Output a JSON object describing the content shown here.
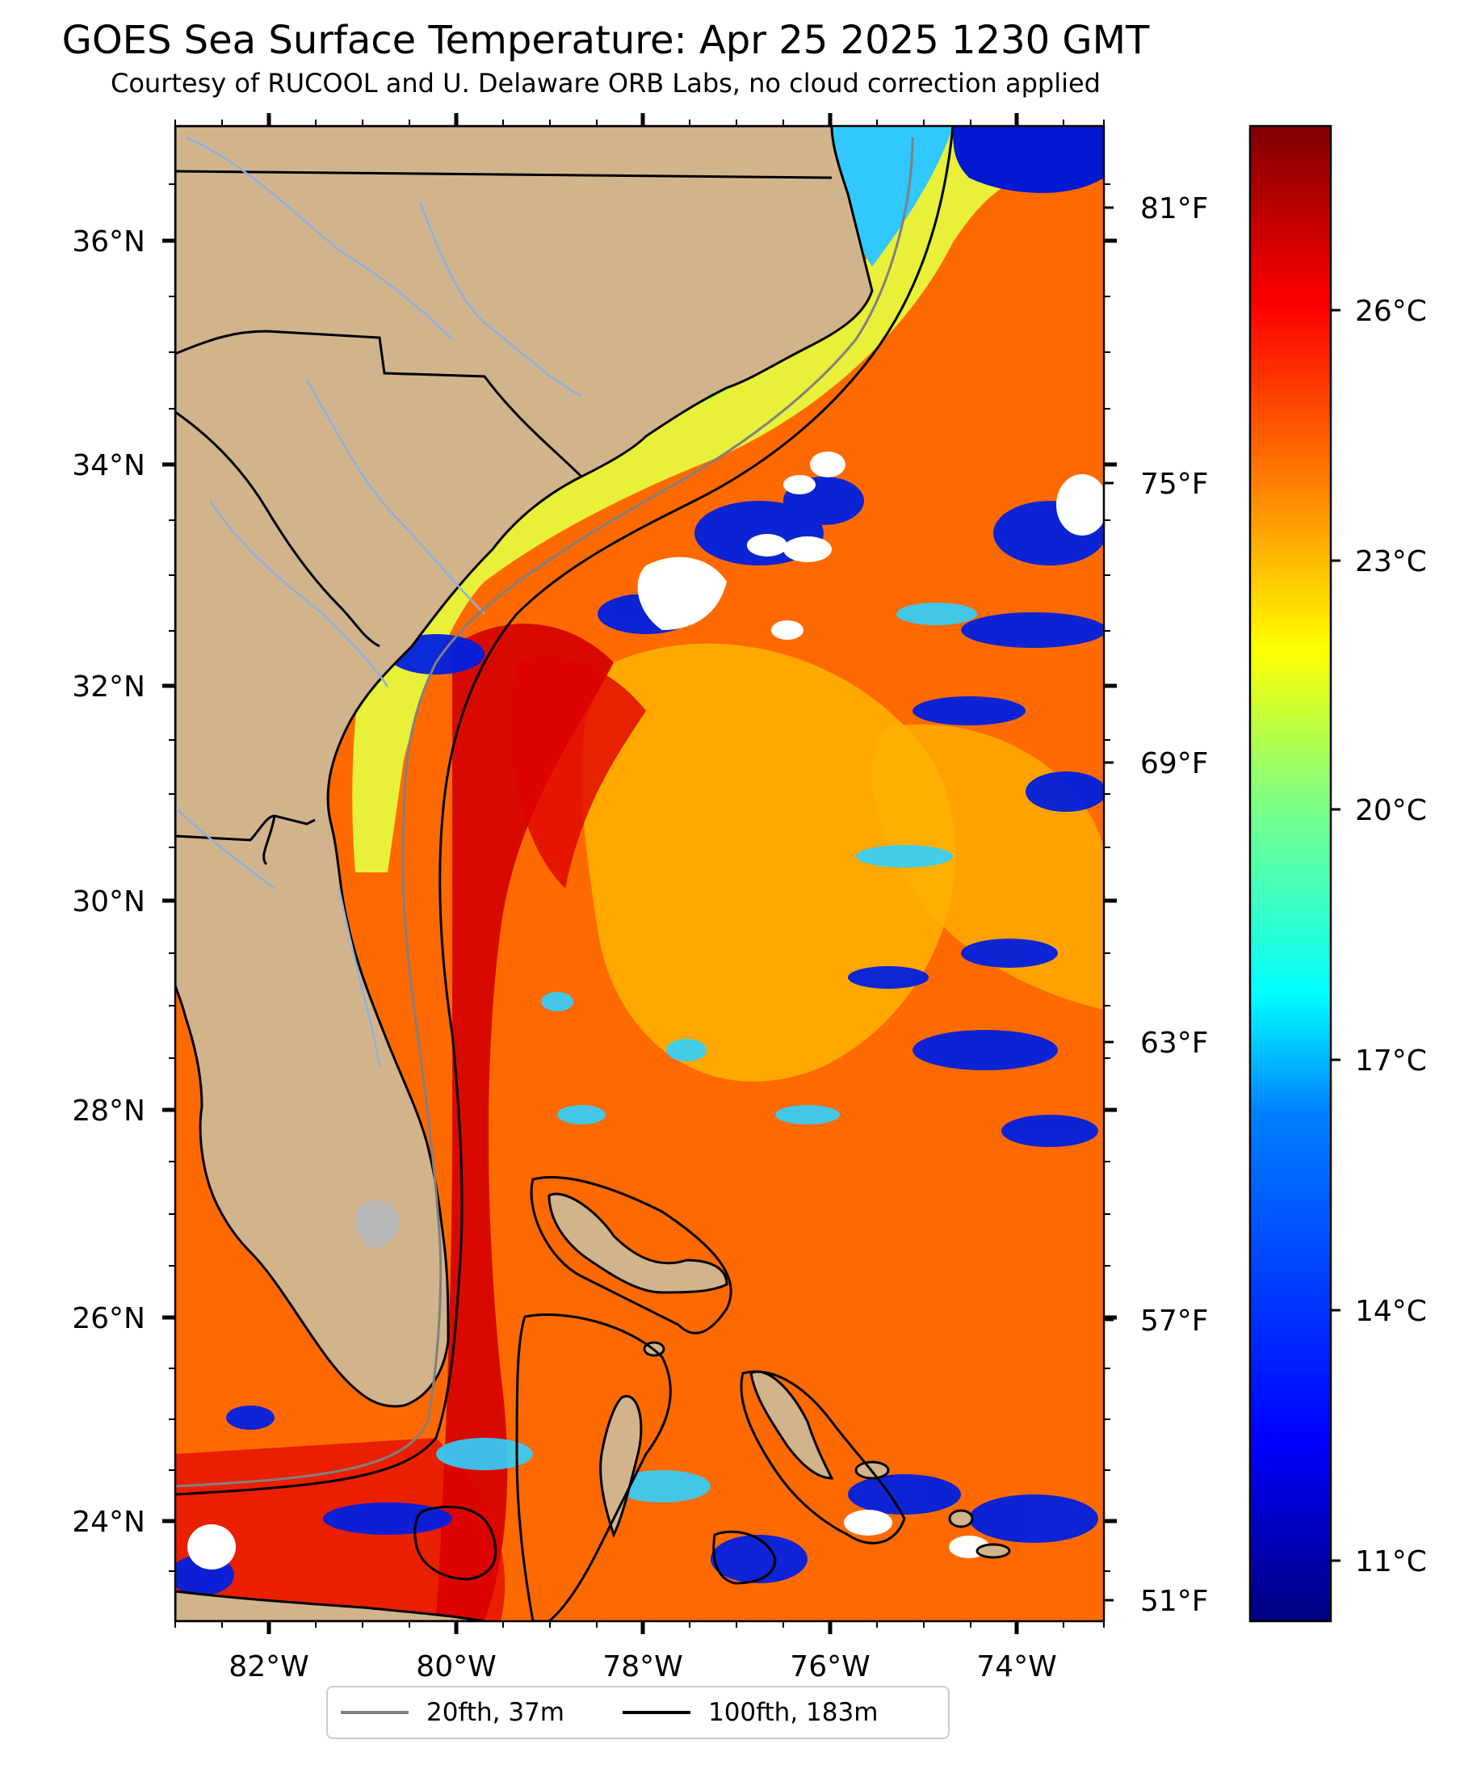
{
  "title": "GOES Sea Surface Temperature: Apr 25 2025 1230 GMT",
  "subtitle": "Courtesy of RUCOOL and U. Delaware ORB Labs, no cloud correction applied",
  "map": {
    "lat_labels": [
      "36°N",
      "34°N",
      "32°N",
      "30°N",
      "28°N",
      "26°N",
      "24°N"
    ],
    "lon_labels": [
      "82°W",
      "80°W",
      "78°W",
      "76°W",
      "74°W"
    ],
    "fahrenheit_labels": [
      "81°F",
      "75°F",
      "69°F",
      "63°F",
      "57°F",
      "51°F"
    ]
  },
  "colorbar": {
    "labels": [
      "26°C",
      "23°C",
      "20°C",
      "17°C",
      "14°C",
      "11°C"
    ],
    "colors": [
      "#000080",
      "#0000ff",
      "#0080ff",
      "#00ffff",
      "#80ff80",
      "#ffff00",
      "#ff8000",
      "#ff0000",
      "#800000"
    ]
  },
  "legend": {
    "items": [
      {
        "label": "20fth, 37m",
        "color": "#808080"
      },
      {
        "label": "100fth, 183m",
        "color": "#000000"
      }
    ]
  },
  "colors": {
    "land": "#d2b48c",
    "rivers": "#8fb0e0",
    "cloud": "#ffffff"
  }
}
